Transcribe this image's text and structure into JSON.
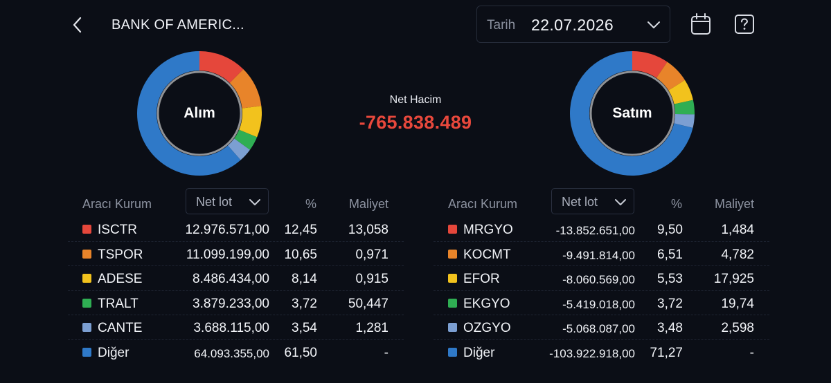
{
  "header": {
    "title": "BANK OF AMERIC...",
    "date_label": "Tarih",
    "date_value": "22.07.2026"
  },
  "net": {
    "label": "Net Hacim",
    "value": "-765.838.489",
    "color": "#e8483c"
  },
  "buy": {
    "donut_label": "Alım",
    "columns": {
      "broker": "Aracı Kurum",
      "lot": "Net lot",
      "pct": "%",
      "cost": "Maliyet"
    },
    "rows": [
      {
        "name": "ISCTR",
        "lot": "12.976.571,00",
        "pct": "12,45",
        "cost": "13,058",
        "color": "#e5473b"
      },
      {
        "name": "TSPOR",
        "lot": "11.099.199,00",
        "pct": "10,65",
        "cost": "0,971",
        "color": "#e8842a"
      },
      {
        "name": "ADESE",
        "lot": "8.486.434,00",
        "pct": "8,14",
        "cost": "0,915",
        "color": "#f2c21d"
      },
      {
        "name": "TRALT",
        "lot": "3.879.233,00",
        "pct": "3,72",
        "cost": "50,447",
        "color": "#2fae53"
      },
      {
        "name": "CANTE",
        "lot": "3.688.115,00",
        "pct": "3,54",
        "cost": "1,281",
        "color": "#7c9fd2"
      },
      {
        "name": "Diğer",
        "lot": "64.093.355,00",
        "pct": "61,50",
        "cost": "-",
        "color": "#2f79c8"
      }
    ]
  },
  "sell": {
    "donut_label": "Satım",
    "columns": {
      "broker": "Aracı Kurum",
      "lot": "Net lot",
      "pct": "%",
      "cost": "Maliyet"
    },
    "rows": [
      {
        "name": "MRGYO",
        "lot": "-13.852.651,00",
        "pct": "9,50",
        "cost": "1,484",
        "color": "#e5473b"
      },
      {
        "name": "KOCMT",
        "lot": "-9.491.814,00",
        "pct": "6,51",
        "cost": "4,782",
        "color": "#e8842a"
      },
      {
        "name": "EFOR",
        "lot": "-8.060.569,00",
        "pct": "5,53",
        "cost": "17,925",
        "color": "#f2c21d"
      },
      {
        "name": "EKGYO",
        "lot": "-5.419.018,00",
        "pct": "3,72",
        "cost": "19,74",
        "color": "#2fae53"
      },
      {
        "name": "OZGYO",
        "lot": "-5.068.087,00",
        "pct": "3,48",
        "cost": "2,598",
        "color": "#7c9fd2"
      },
      {
        "name": "Diğer",
        "lot": "-103.922.918,00",
        "pct": "71,27",
        "cost": "-",
        "color": "#2f79c8"
      }
    ]
  }
}
